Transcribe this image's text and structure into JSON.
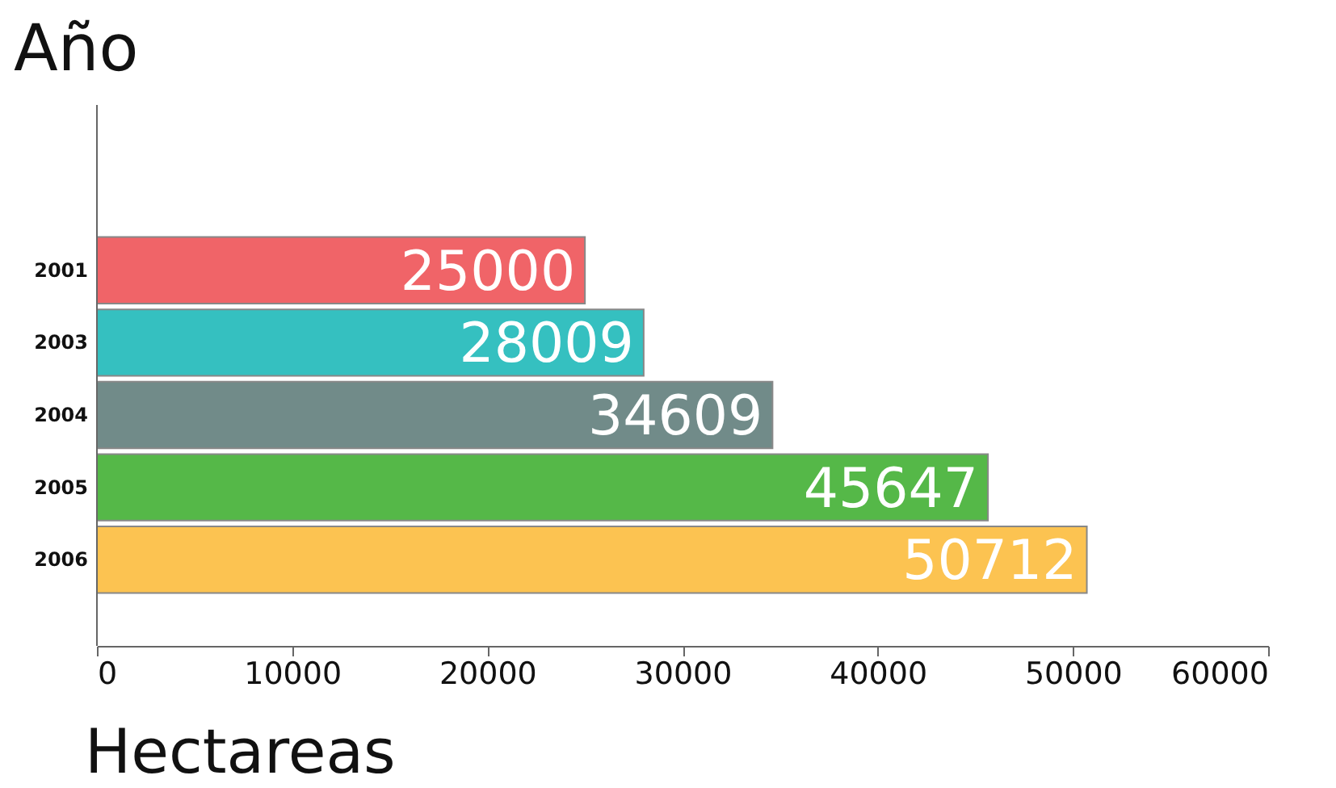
{
  "chart_data": {
    "type": "bar",
    "orientation": "horizontal",
    "xlabel": "Hectareas",
    "ylabel": "Año",
    "categories": [
      "2001",
      "2003",
      "2004",
      "2005",
      "2006"
    ],
    "values": [
      25000,
      28009,
      34609,
      45647,
      50712
    ],
    "colors": [
      "#f06468",
      "#35c0c0",
      "#718b89",
      "#55b848",
      "#fcc351"
    ],
    "xlim": [
      0,
      60000
    ],
    "xticks": [
      0,
      10000,
      20000,
      30000,
      40000,
      50000,
      60000
    ],
    "data_labels": true,
    "grid": false
  }
}
